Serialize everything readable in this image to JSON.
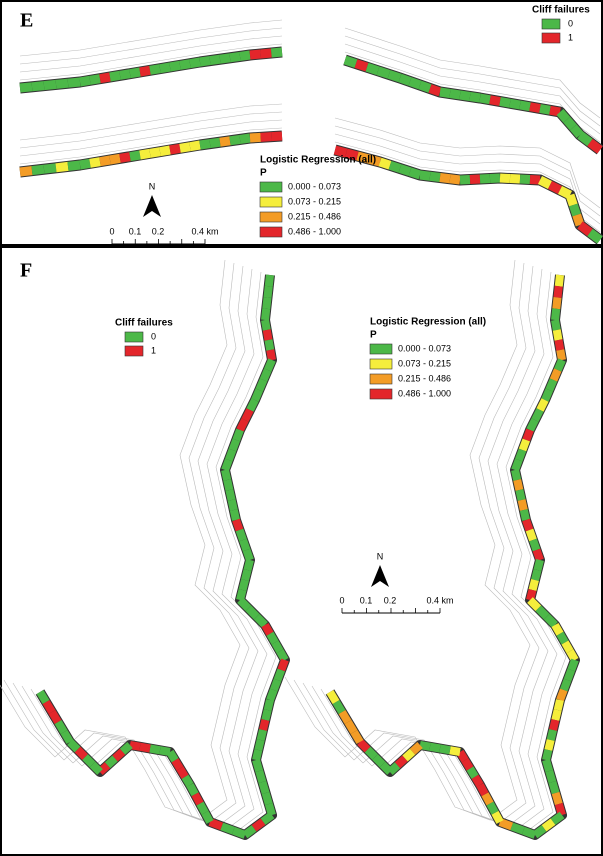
{
  "panels": [
    {
      "label": "E",
      "cliff_legend": {
        "title": "Cliff failures",
        "items": [
          "0",
          "1"
        ]
      },
      "lr_legend": {
        "title": "Logistic Regression (all)",
        "subtitle": "P",
        "items": [
          "0.000 - 0.073",
          "0.073 - 0.215",
          "0.215 - 0.486",
          "0.486 - 1.000"
        ]
      },
      "north": "N",
      "scale": [
        "0",
        "0.1",
        "0.2",
        "0.4 km"
      ]
    },
    {
      "label": "F",
      "cliff_legend": {
        "title": "Cliff failures",
        "items": [
          "0",
          "1"
        ]
      },
      "lr_legend": {
        "title": "Logistic Regression (all)",
        "subtitle": "P",
        "items": [
          "0.000 - 0.073",
          "0.073 - 0.215",
          "0.215 - 0.486",
          "0.486 - 1.000"
        ]
      },
      "north": "N",
      "scale": [
        "0",
        "0.1",
        "0.2",
        "0.4 km"
      ]
    }
  ]
}
